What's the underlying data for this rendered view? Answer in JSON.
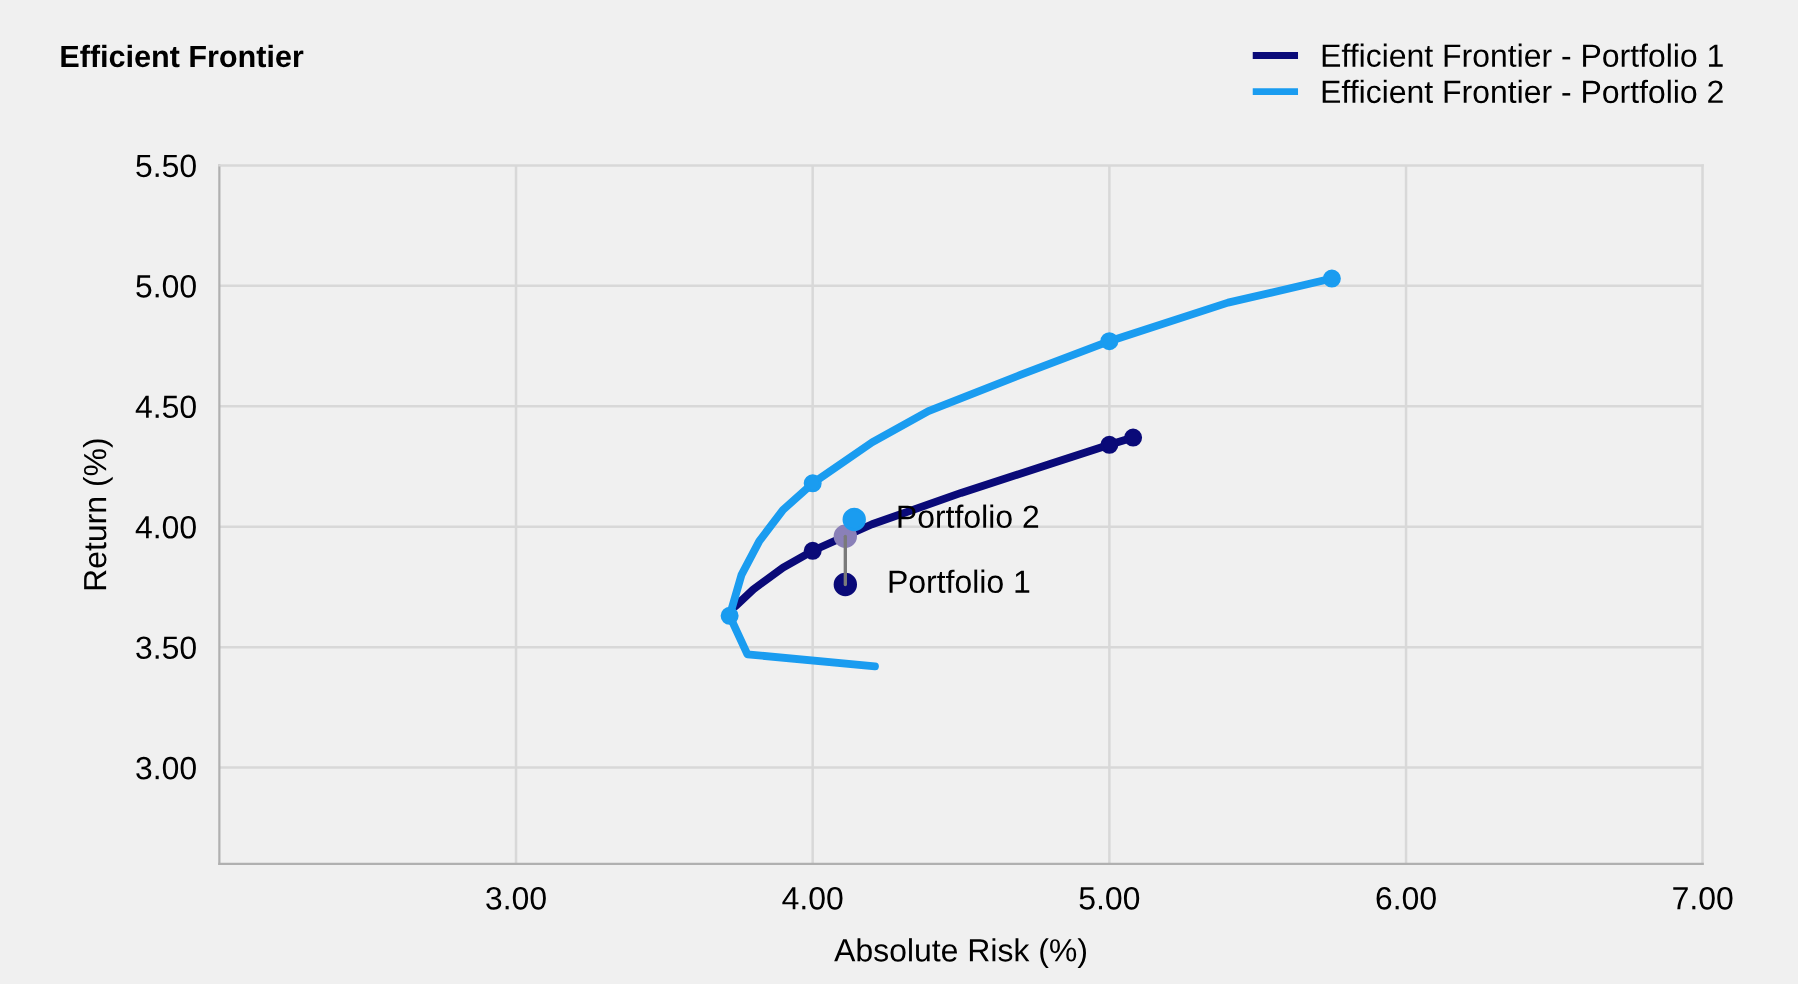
{
  "chart_data": {
    "type": "line",
    "title": "Efficient Frontier",
    "xlabel": "Absolute Risk (%)",
    "ylabel": "Return (%)",
    "xlim": [
      2.0,
      7.0
    ],
    "ylim": [
      2.6,
      5.5
    ],
    "xticks": [
      {
        "value": 3,
        "label": "3.00"
      },
      {
        "value": 4,
        "label": "4.00"
      },
      {
        "value": 5,
        "label": "5.00"
      },
      {
        "value": 6,
        "label": "6.00"
      },
      {
        "value": 7,
        "label": "7.00"
      }
    ],
    "yticks": [
      {
        "value": 3,
        "label": "3.00"
      },
      {
        "value": 3.5,
        "label": "3.50"
      },
      {
        "value": 4,
        "label": "4.00"
      },
      {
        "value": 4.5,
        "label": "4.50"
      },
      {
        "value": 5,
        "label": "5.00"
      },
      {
        "value": 5.5,
        "label": "5.50"
      }
    ],
    "grid": true,
    "legend": "top right",
    "series": [
      {
        "name": "Efficient Frontier - Portfolio 1",
        "color": "#0a0a78",
        "x": [
          3.74,
          3.8,
          3.9,
          4.0,
          4.2,
          4.5,
          4.8,
          5.0,
          5.08
        ],
        "values": [
          3.67,
          3.74,
          3.83,
          3.9,
          4.01,
          4.14,
          4.26,
          4.34,
          4.37
        ]
      },
      {
        "name": "Efficient Frontier - Portfolio 2",
        "color": "#1a9cf0",
        "x": [
          4.21,
          3.78,
          3.72,
          3.76,
          3.82,
          3.9,
          4.0,
          4.2,
          4.39,
          4.7,
          5.0,
          5.4,
          5.75
        ],
        "values": [
          3.42,
          3.47,
          3.63,
          3.8,
          3.94,
          4.07,
          4.18,
          4.35,
          4.48,
          4.63,
          4.77,
          4.93,
          5.03
        ]
      },
      {
        "type": "scatter",
        "color": "#1a9cf0",
        "x": [
          3.72,
          4.0,
          5.0,
          5.75
        ],
        "values": [
          3.63,
          4.18,
          4.77,
          5.03
        ]
      },
      {
        "type": "scatter",
        "color": "#0a0a78",
        "x": [
          4.0,
          5.0,
          5.08
        ],
        "values": [
          3.9,
          4.34,
          4.37
        ]
      },
      {
        "type": "line",
        "color": "#7a7a7a",
        "x": [
          4.11,
          4.11
        ],
        "values": [
          3.76,
          3.96
        ]
      },
      {
        "type": "scatter",
        "color": "#8a80b8",
        "x": [
          4.11
        ],
        "values": [
          3.96
        ]
      },
      {
        "type": "scatter",
        "color": "#1a9cf0",
        "x": [
          4.14
        ],
        "values": [
          4.03
        ]
      },
      {
        "type": "scatter",
        "color": "#0a0a78",
        "x": [
          4.11
        ],
        "values": [
          3.76
        ]
      }
    ],
    "annotations": [
      {
        "text": "Portfolio 2",
        "x": 4.14,
        "y": 4.03
      },
      {
        "text": "Portfolio 1",
        "x": 4.11,
        "y": 3.76
      }
    ]
  }
}
